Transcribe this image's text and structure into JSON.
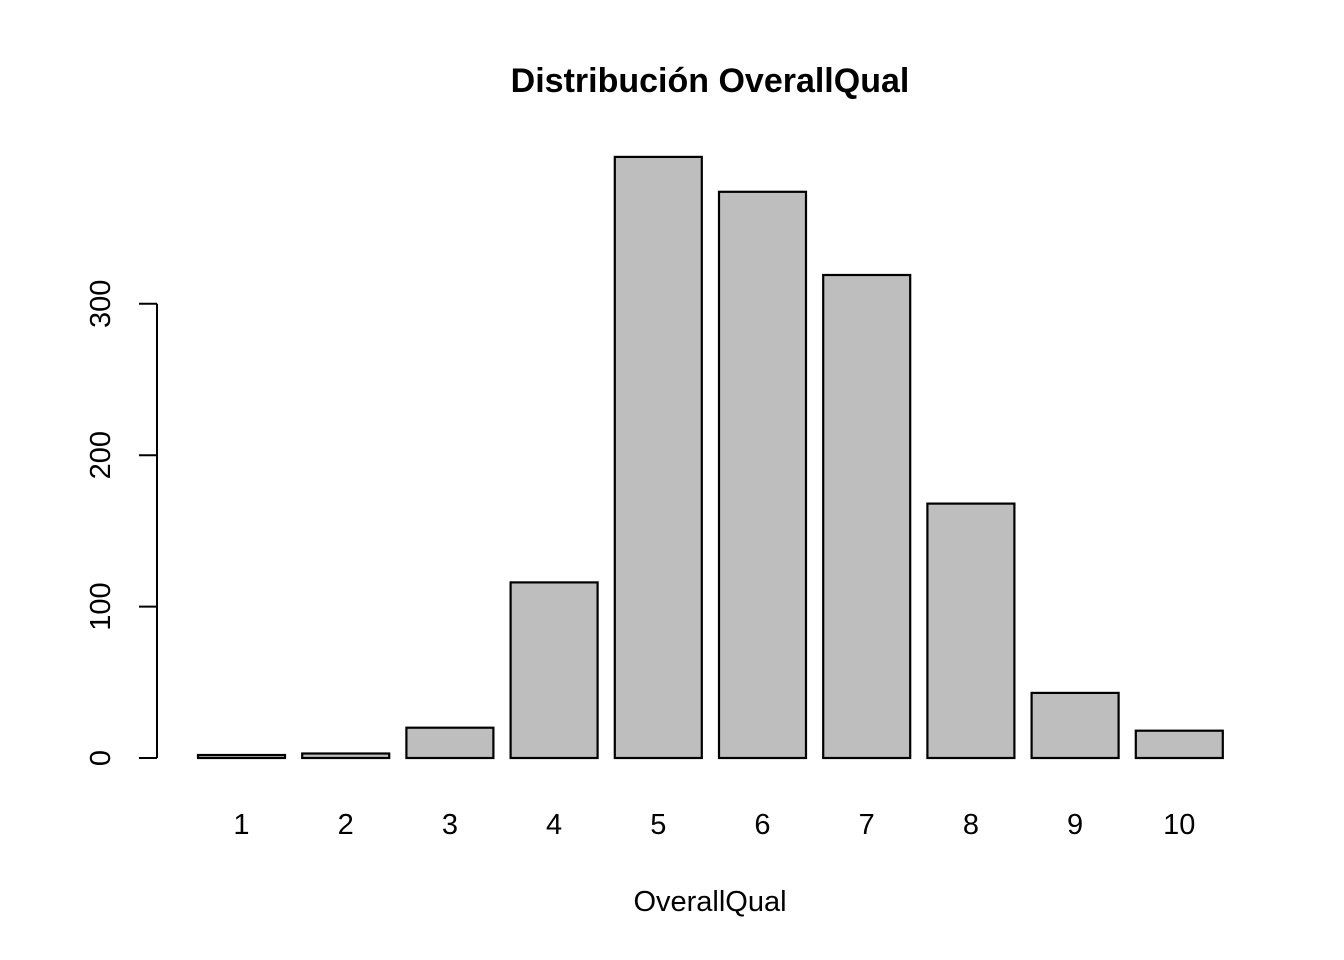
{
  "chart_data": {
    "type": "bar",
    "title": "Distribución OverallQual",
    "xlabel": "OverallQual",
    "ylabel": "",
    "categories": [
      "1",
      "2",
      "3",
      "4",
      "5",
      "6",
      "7",
      "8",
      "9",
      "10"
    ],
    "values": [
      2,
      3,
      20,
      116,
      397,
      374,
      319,
      168,
      43,
      18
    ],
    "ylim": [
      0,
      400
    ],
    "yticks": [
      0,
      100,
      200,
      300
    ],
    "ytick_labels": [
      "0",
      "100",
      "200",
      "300"
    ],
    "grid": false,
    "legend": "none",
    "bar_fill": "#bebebe",
    "bar_stroke": "#000000"
  }
}
